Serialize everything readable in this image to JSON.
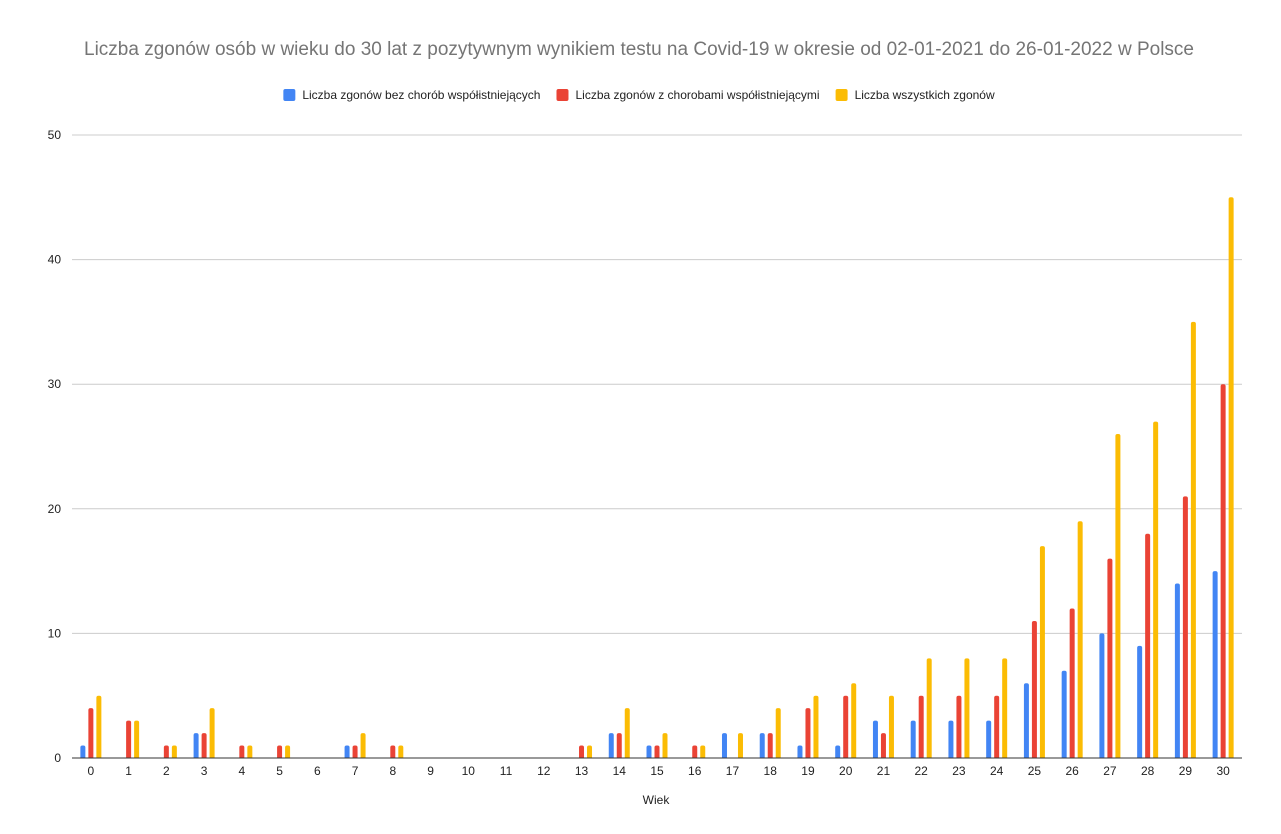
{
  "chart_data": {
    "type": "bar",
    "title": "Liczba zgonów osób w wieku do 30 lat z pozytywnym wynikiem testu na Covid-19 w okresie od 02-01-2021 do 26-01-2022 w Polsce",
    "xlabel": "Wiek",
    "ylabel": "",
    "ylim": [
      0,
      50
    ],
    "yticks": [
      "0",
      "10",
      "20",
      "30",
      "40",
      "50"
    ],
    "grid": true,
    "legend_position": "top",
    "categories": [
      "0",
      "1",
      "2",
      "3",
      "4",
      "5",
      "6",
      "7",
      "8",
      "9",
      "10",
      "11",
      "12",
      "13",
      "14",
      "15",
      "16",
      "17",
      "18",
      "19",
      "20",
      "21",
      "22",
      "23",
      "24",
      "25",
      "26",
      "27",
      "28",
      "29",
      "30"
    ],
    "series": [
      {
        "name": "Liczba zgonów bez chorób współistniejących",
        "color": "#4285f4",
        "values": [
          1,
          0,
          0,
          2,
          0,
          0,
          0,
          1,
          0,
          0,
          0,
          0,
          0,
          0,
          2,
          1,
          0,
          2,
          2,
          1,
          1,
          3,
          3,
          3,
          3,
          6,
          7,
          10,
          9,
          14,
          15
        ]
      },
      {
        "name": "Liczba zgonów z chorobami współistniejącymi",
        "color": "#ea4335",
        "values": [
          4,
          3,
          1,
          2,
          1,
          1,
          0,
          1,
          1,
          0,
          0,
          0,
          0,
          1,
          2,
          1,
          1,
          0,
          2,
          4,
          5,
          2,
          5,
          5,
          5,
          11,
          12,
          16,
          18,
          21,
          30
        ]
      },
      {
        "name": "Liczba wszystkich zgonów",
        "color": "#fbbc04",
        "values": [
          5,
          3,
          1,
          4,
          1,
          1,
          0,
          2,
          1,
          0,
          0,
          0,
          0,
          1,
          4,
          2,
          1,
          2,
          4,
          5,
          6,
          5,
          8,
          8,
          8,
          17,
          19,
          26,
          27,
          35,
          45
        ]
      }
    ]
  }
}
